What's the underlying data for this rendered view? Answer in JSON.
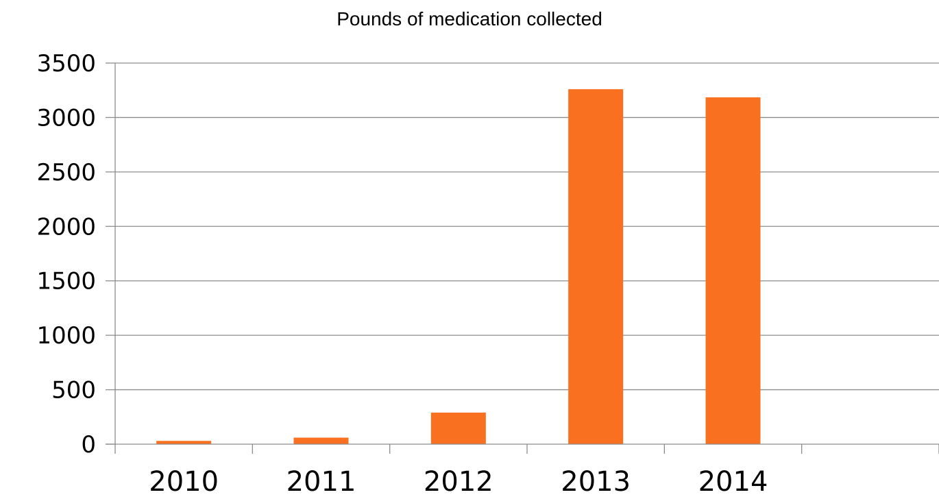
{
  "chart_data": {
    "type": "bar",
    "title": "Pounds of medication collected",
    "xlabel": "",
    "ylabel": "",
    "categories": [
      "2010",
      "2011",
      "2012",
      "2013",
      "2014",
      ""
    ],
    "values": [
      30,
      60,
      290,
      3260,
      3185,
      null
    ],
    "ylim": [
      0,
      3500
    ],
    "yticks": [
      0,
      500,
      1000,
      1500,
      2000,
      2500,
      3000,
      3500
    ],
    "ytick_labels": [
      "0",
      "500",
      "1000",
      "1500",
      "2000",
      "2500",
      "3000",
      "3500"
    ],
    "grid": true,
    "legend": "none",
    "bar_color": "#F97120",
    "grid_color": "#8C8C8C"
  }
}
